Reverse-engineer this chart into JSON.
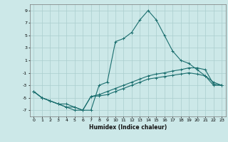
{
  "xlabel": "Humidex (Indice chaleur)",
  "ylabel": "",
  "bg_color": "#cce8e8",
  "grid_color": "#aacece",
  "line_color": "#1a6e6e",
  "xlim": [
    -0.5,
    23.5
  ],
  "ylim": [
    -8,
    10
  ],
  "xticks": [
    0,
    1,
    2,
    3,
    4,
    5,
    6,
    7,
    8,
    9,
    10,
    11,
    12,
    13,
    14,
    15,
    16,
    17,
    18,
    19,
    20,
    21,
    22,
    23
  ],
  "yticks": [
    -7,
    -5,
    -3,
    -1,
    1,
    3,
    5,
    7,
    9
  ],
  "series": [
    {
      "x": [
        0,
        1,
        2,
        3,
        4,
        5,
        6,
        7,
        8,
        9,
        10,
        11,
        12,
        13,
        14,
        15,
        16,
        17,
        18,
        19,
        20,
        21,
        22,
        23
      ],
      "y": [
        -4,
        -5,
        -5.5,
        -6,
        -6,
        -6.5,
        -7,
        -7,
        -3,
        -2.5,
        4,
        4.5,
        5.5,
        7.5,
        9,
        7.5,
        5,
        2.5,
        1,
        0.5,
        -0.5,
        -1.5,
        -2.5,
        -3
      ]
    },
    {
      "x": [
        0,
        1,
        2,
        3,
        4,
        5,
        6,
        7,
        8,
        9,
        10,
        11,
        12,
        13,
        14,
        15,
        16,
        17,
        18,
        19,
        20,
        21,
        22,
        23
      ],
      "y": [
        -4,
        -5,
        -5.5,
        -6,
        -6.5,
        -6.5,
        -7,
        -4.8,
        -4.7,
        -4.5,
        -4,
        -3.5,
        -3,
        -2.5,
        -2,
        -1.8,
        -1.6,
        -1.4,
        -1.2,
        -1,
        -1.2,
        -1.5,
        -3,
        -3
      ]
    },
    {
      "x": [
        0,
        1,
        2,
        3,
        4,
        5,
        6,
        7,
        8,
        9,
        10,
        11,
        12,
        13,
        14,
        15,
        16,
        17,
        18,
        19,
        20,
        21,
        22,
        23
      ],
      "y": [
        -4,
        -5,
        -5.5,
        -6,
        -6.5,
        -7,
        -7,
        -4.8,
        -4.5,
        -4,
        -3.5,
        -3,
        -2.5,
        -2,
        -1.5,
        -1.2,
        -1,
        -0.7,
        -0.5,
        -0.2,
        -0.2,
        -0.5,
        -2.8,
        -3
      ]
    }
  ]
}
